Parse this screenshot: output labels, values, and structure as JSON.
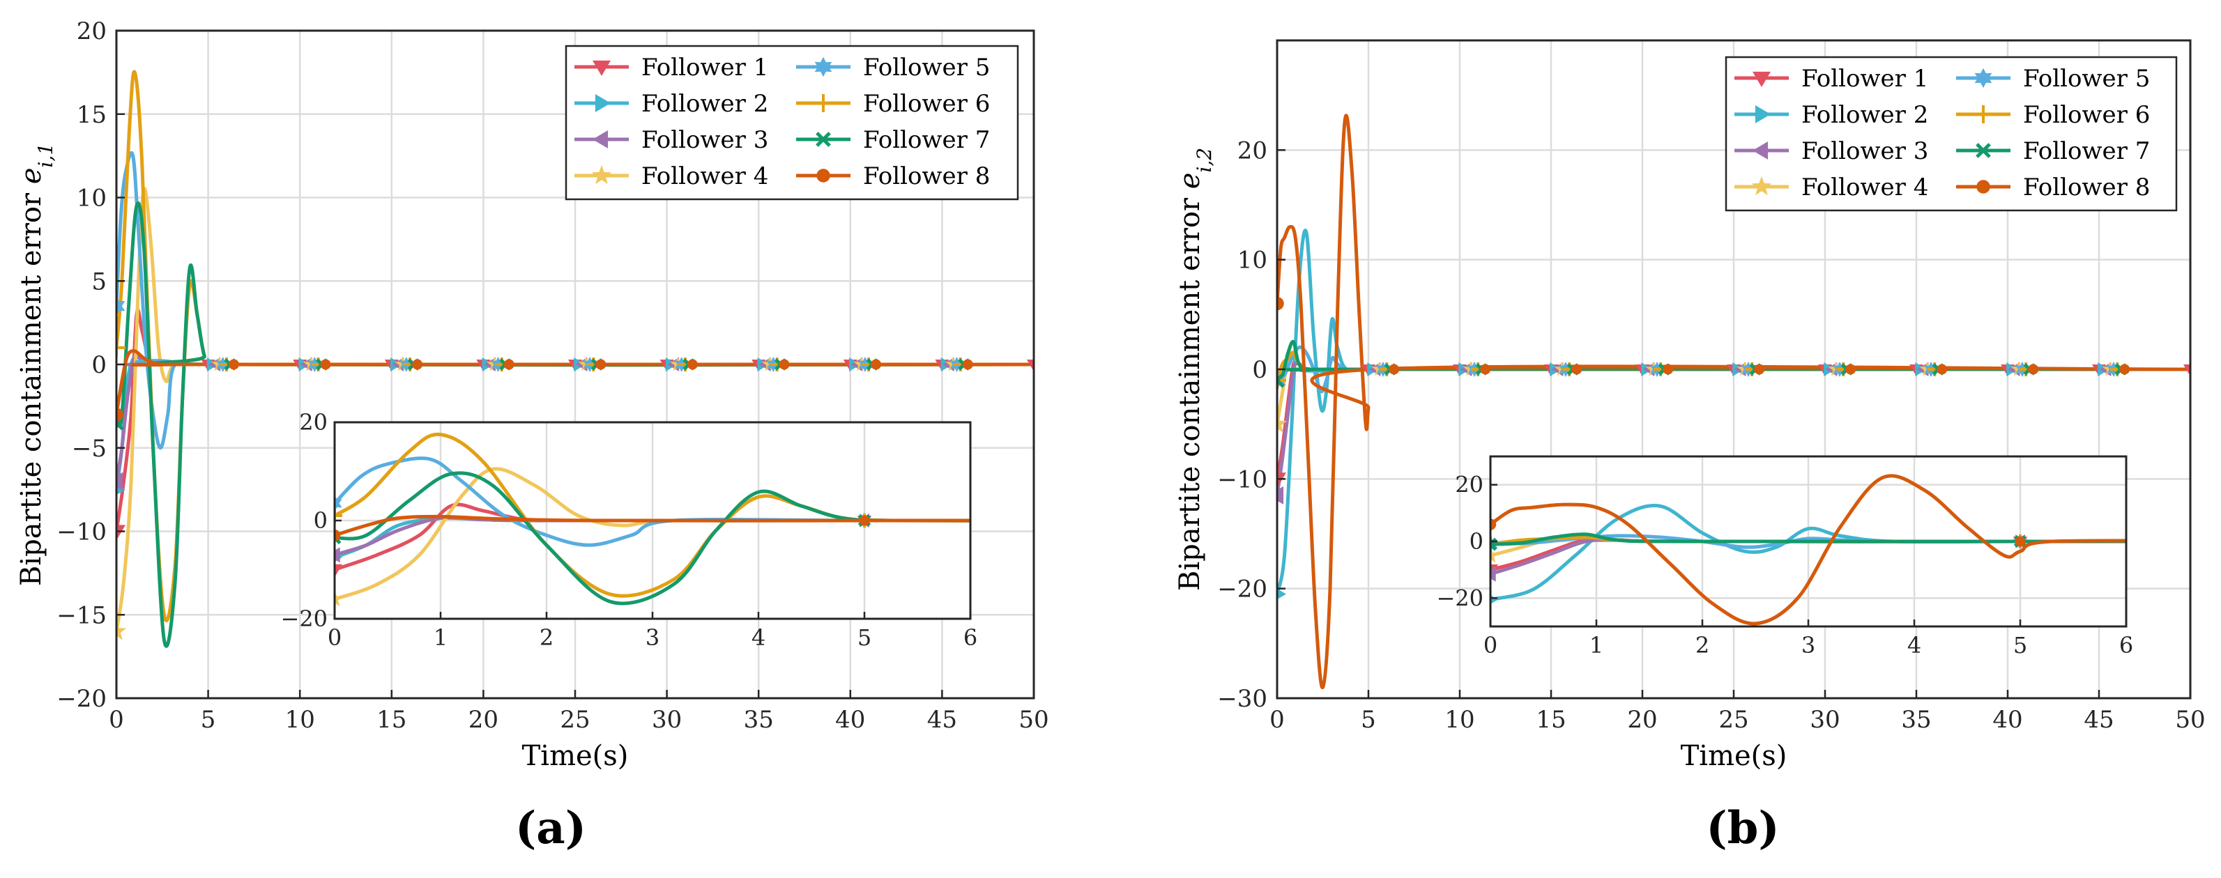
{
  "colors": {
    "Follower 1": "#e2505f",
    "Follower 2": "#3fb5cf",
    "Follower 3": "#9e72b0",
    "Follower 4": "#f1c65a",
    "Follower 5": "#57addf",
    "Follower 6": "#e3a012",
    "Follower 7": "#139a6a",
    "Follower 8": "#d55a0c"
  },
  "markers": {
    "Follower 1": "tri-down",
    "Follower 2": "tri-right",
    "Follower 3": "tri-left",
    "Follower 4": "star",
    "Follower 5": "hexagram",
    "Follower 6": "plus",
    "Follower 7": "x",
    "Follower 8": "dot"
  },
  "chart_data": [
    {
      "id": "a",
      "type": "line",
      "panel_label": "(a)",
      "xlabel": "Time(s)",
      "ylabel_prefix": "Bipartite containment error ",
      "ylabel_var": "e",
      "ylabel_sub": "i,1",
      "xlim": [
        0,
        50
      ],
      "ylim": [
        -20,
        20
      ],
      "xticks": [
        0,
        5,
        10,
        15,
        20,
        25,
        30,
        35,
        40,
        45,
        50
      ],
      "yticks": [
        -20,
        -15,
        -10,
        -5,
        0,
        5,
        10,
        15,
        20
      ],
      "legend": [
        "Follower 1",
        "Follower 2",
        "Follower 3",
        "Follower 4",
        "Follower 5",
        "Follower 6",
        "Follower 7",
        "Follower 8"
      ],
      "legend_position": "top-right",
      "series": [
        {
          "name": "Follower 1",
          "x": [
            0,
            0.4,
            0.8,
            1.1,
            1.4,
            1.8,
            2.3,
            5,
            50
          ],
          "y": [
            -10,
            -7,
            -3,
            3,
            2,
            0.2,
            0,
            0,
            0
          ]
        },
        {
          "name": "Follower 2",
          "x": [
            0,
            0.3,
            0.6,
            1.0,
            1.4,
            2.0,
            5,
            50
          ],
          "y": [
            -7.5,
            -5,
            -1,
            0.5,
            0.2,
            0,
            0,
            0
          ]
        },
        {
          "name": "Follower 3",
          "x": [
            0,
            0.3,
            0.6,
            1.0,
            1.4,
            2.0,
            5,
            50
          ],
          "y": [
            -7,
            -5,
            -2,
            0.5,
            0.2,
            0,
            0,
            0
          ]
        },
        {
          "name": "Follower 4",
          "x": [
            0,
            0.4,
            0.8,
            1.2,
            1.5,
            1.9,
            2.3,
            2.7,
            3.2,
            5,
            50
          ],
          "y": [
            -16,
            -13,
            -7,
            5,
            10.5,
            7,
            1,
            -1,
            0,
            0,
            0
          ]
        },
        {
          "name": "Follower 5",
          "x": [
            0,
            0.25,
            0.5,
            0.9,
            1.2,
            1.6,
            2.0,
            2.4,
            2.8,
            3.2,
            5,
            50
          ],
          "y": [
            3.5,
            9,
            11.5,
            12.5,
            8,
            1,
            -3,
            -5,
            -3,
            0,
            0,
            0
          ]
        },
        {
          "name": "Follower 6",
          "x": [
            0,
            0.3,
            0.7,
            1.0,
            1.4,
            2.0,
            2.6,
            3.2,
            3.6,
            4.0,
            4.4,
            4.8,
            5.3,
            50
          ],
          "y": [
            1,
            5,
            14,
            17.5,
            12,
            -5,
            -15,
            -12,
            -2,
            4.8,
            3,
            0.5,
            0,
            0
          ]
        },
        {
          "name": "Follower 7",
          "x": [
            0,
            0.3,
            0.7,
            1.1,
            1.5,
            2.0,
            2.6,
            3.2,
            3.6,
            4.0,
            4.4,
            4.8,
            5.3,
            50
          ],
          "y": [
            -3.5,
            -3,
            4,
            9.5,
            7,
            -5,
            -16.5,
            -13,
            -2,
            5.8,
            3,
            0.5,
            0,
            0
          ]
        },
        {
          "name": "Follower 8",
          "x": [
            0,
            0.3,
            0.6,
            1.0,
            1.6,
            2.5,
            5,
            50
          ],
          "y": [
            -3,
            -1,
            0.5,
            0.8,
            0.3,
            0,
            0,
            0
          ]
        }
      ],
      "inset": {
        "xlim": [
          0,
          6
        ],
        "ylim": [
          -20,
          20
        ],
        "xticks": [
          0,
          1,
          2,
          3,
          4,
          5,
          6
        ],
        "yticks": [
          -20,
          0,
          20
        ]
      }
    },
    {
      "id": "b",
      "type": "line",
      "panel_label": "(b)",
      "xlabel": "Time(s)",
      "ylabel_prefix": "Bipartite containment error ",
      "ylabel_var": "e",
      "ylabel_sub": "i,2",
      "xlim": [
        0,
        50
      ],
      "ylim": [
        -30,
        30
      ],
      "xticks": [
        0,
        5,
        10,
        15,
        20,
        25,
        30,
        35,
        40,
        45,
        50
      ],
      "yticks": [
        -30,
        -20,
        -10,
        0,
        10,
        20
      ],
      "legend": [
        "Follower 1",
        "Follower 2",
        "Follower 3",
        "Follower 4",
        "Follower 5",
        "Follower 6",
        "Follower 7",
        "Follower 8"
      ],
      "legend_position": "top-right",
      "series": [
        {
          "name": "Follower 1",
          "x": [
            0,
            0.3,
            0.6,
            0.9,
            1.2,
            1.8,
            5,
            50
          ],
          "y": [
            -10,
            -7,
            -3,
            0.5,
            0.5,
            0,
            0,
            0
          ]
        },
        {
          "name": "Follower 2",
          "x": [
            0,
            0.4,
            0.8,
            1.2,
            1.6,
            2.0,
            2.4,
            2.7,
            3.0,
            3.3,
            3.8,
            5,
            50
          ],
          "y": [
            -20.5,
            -17,
            -5,
            8,
            12.5,
            3,
            -3.5,
            -2,
            4.5,
            2,
            0,
            0,
            0
          ]
        },
        {
          "name": "Follower 3",
          "x": [
            0,
            0.3,
            0.6,
            0.9,
            1.2,
            1.8,
            5,
            50
          ],
          "y": [
            -11.5,
            -8,
            -4,
            0,
            0.5,
            0,
            0,
            0
          ]
        },
        {
          "name": "Follower 4",
          "x": [
            0,
            0.3,
            0.6,
            0.9,
            1.2,
            1.8,
            5,
            50
          ],
          "y": [
            -5,
            -2,
            1,
            1.5,
            0.5,
            0,
            0,
            0
          ]
        },
        {
          "name": "Follower 5",
          "x": [
            0,
            0.4,
            0.8,
            1.2,
            1.6,
            2.0,
            2.4,
            2.7,
            3.0,
            3.3,
            3.8,
            5,
            50
          ],
          "y": [
            -1,
            -0.5,
            1,
            2,
            1.5,
            0,
            -2,
            -1,
            1,
            0.5,
            0,
            0,
            0
          ]
        },
        {
          "name": "Follower 6",
          "x": [
            0,
            0.3,
            0.6,
            0.9,
            1.2,
            1.8,
            5,
            50
          ],
          "y": [
            -1,
            0.5,
            1,
            1.5,
            0.5,
            0,
            0,
            0
          ]
        },
        {
          "name": "Follower 7",
          "x": [
            0,
            0.3,
            0.6,
            0.9,
            1.2,
            1.8,
            5,
            50
          ],
          "y": [
            -1,
            -0.5,
            1.5,
            2.5,
            0.5,
            0,
            0,
            0
          ]
        },
        {
          "name": "Follower 8",
          "x": [
            0,
            0.2,
            0.4,
            0.7,
            1.0,
            1.3,
            1.7,
            2.1,
            2.5,
            2.9,
            3.3,
            3.7,
            4.1,
            4.5,
            4.85,
            5.0,
            5.3,
            50
          ],
          "y": [
            6,
            11,
            12,
            13,
            12,
            6,
            -8,
            -22,
            -29,
            -20,
            5,
            22.5,
            18,
            5,
            -5,
            -3.5,
            0,
            0
          ]
        }
      ],
      "inset": {
        "xlim": [
          0,
          6
        ],
        "ylim": [
          -30,
          30
        ],
        "xticks": [
          0,
          1,
          2,
          3,
          4,
          5,
          6
        ],
        "yticks": [
          -20,
          0,
          20
        ]
      }
    }
  ]
}
